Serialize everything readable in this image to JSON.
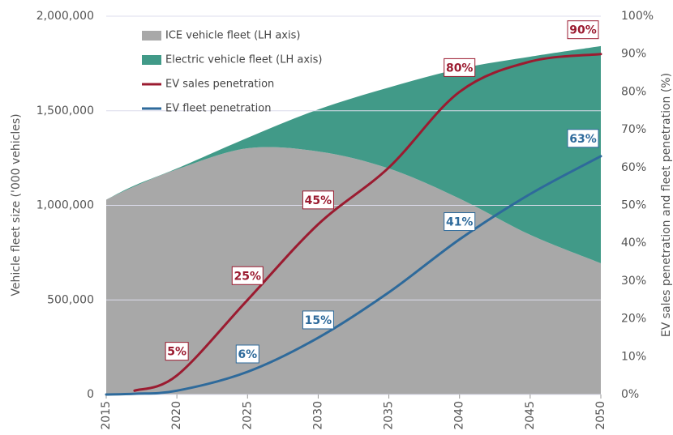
{
  "chart_data": {
    "type": "stacked-area-line",
    "y_label": "Vehicle fleet size ('000 vehicles)",
    "y2_label": "EV sales penetration and fleet penetration (%)",
    "x": [
      2015,
      2017,
      2020,
      2025,
      2030,
      2035,
      2040,
      2045,
      2050
    ],
    "xlim": [
      2015,
      2050
    ],
    "xticks": [
      2015,
      2020,
      2025,
      2030,
      2035,
      2040,
      2045,
      2050
    ],
    "ylim": [
      0,
      2000000
    ],
    "yticks": [
      {
        "value": 0,
        "label": "0"
      },
      {
        "value": 500000,
        "label": "500,000"
      },
      {
        "value": 1000000,
        "label": "1,000,000"
      },
      {
        "value": 1500000,
        "label": "1,500,000"
      },
      {
        "value": 2000000,
        "label": "2,000,000"
      }
    ],
    "y2lim": [
      0,
      100
    ],
    "y2ticks": [
      {
        "value": 0,
        "label": "0%"
      },
      {
        "value": 10,
        "label": "10%"
      },
      {
        "value": 20,
        "label": "20%"
      },
      {
        "value": 30,
        "label": "30%"
      },
      {
        "value": 40,
        "label": "40%"
      },
      {
        "value": 50,
        "label": "50%"
      },
      {
        "value": 60,
        "label": "60%"
      },
      {
        "value": 70,
        "label": "70%"
      },
      {
        "value": 80,
        "label": "80%"
      },
      {
        "value": 90,
        "label": "90%"
      },
      {
        "value": 100,
        "label": "100%"
      }
    ],
    "grid": true,
    "series": [
      {
        "name": "ICE vehicle fleet (LH axis)",
        "type": "area",
        "color": "#a8a8a8",
        "values": [
          1030000,
          1100000,
          1190000,
          1302000,
          1285000,
          1195000,
          1036000,
          844000,
          694000
        ]
      },
      {
        "name": "Electric vehicle fleet (LH axis)",
        "type": "area",
        "color": "#419a88",
        "values": [
          0,
          5000,
          5000,
          55000,
          222000,
          428000,
          686000,
          942000,
          1148000
        ]
      },
      {
        "name": "EV sales penetration",
        "type": "line",
        "axis": "y2",
        "color": "#9b1b30",
        "values": [
          null,
          1,
          5,
          25,
          45,
          60,
          80,
          88,
          90
        ],
        "value_labels": [
          null,
          null,
          "5%",
          "25%",
          "45%",
          null,
          "80%",
          null,
          "90%"
        ]
      },
      {
        "name": "EV fleet penetration",
        "type": "line",
        "axis": "y2",
        "color": "#2e6a9b",
        "values": [
          0,
          0.2,
          1,
          6,
          15,
          27,
          41,
          53,
          63
        ],
        "value_labels": [
          null,
          null,
          null,
          "6%",
          "15%",
          null,
          "41%",
          null,
          "63%"
        ]
      }
    ]
  }
}
